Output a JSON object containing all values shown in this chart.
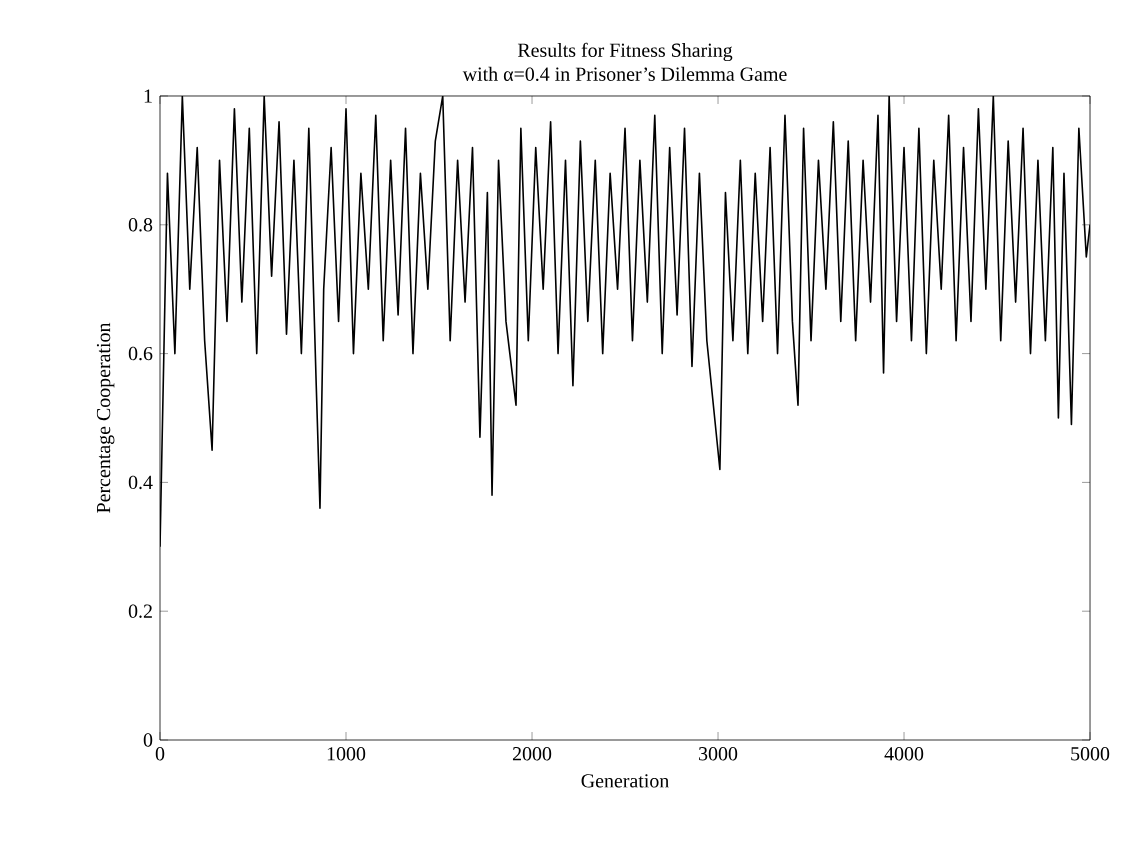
{
  "chart_data": {
    "type": "line",
    "title": "Results for Fitness Sharing",
    "subtitle": "with α=0.4 in Prisoner’s Dilemma Game",
    "xlabel": "Generation",
    "ylabel": "Percentage Cooperation",
    "xlim": [
      0,
      5000
    ],
    "ylim": [
      0,
      1
    ],
    "xticks": [
      0,
      1000,
      2000,
      3000,
      4000,
      5000
    ],
    "yticks": [
      0,
      0.2,
      0.4,
      0.6,
      0.8,
      1
    ],
    "grid": false,
    "marker": "none",
    "line_style": "solid",
    "series": [
      {
        "color": "#000000",
        "x": [
          0,
          40,
          80,
          120,
          160,
          200,
          240,
          280,
          320,
          360,
          400,
          440,
          480,
          520,
          560,
          600,
          640,
          680,
          720,
          760,
          800,
          840,
          860,
          880,
          920,
          960,
          1000,
          1040,
          1080,
          1120,
          1160,
          1200,
          1240,
          1280,
          1320,
          1360,
          1400,
          1440,
          1480,
          1520,
          1560,
          1600,
          1640,
          1680,
          1720,
          1760,
          1785,
          1820,
          1860,
          1914,
          1940,
          1980,
          2020,
          2060,
          2100,
          2140,
          2180,
          2220,
          2260,
          2300,
          2340,
          2380,
          2420,
          2460,
          2500,
          2540,
          2580,
          2620,
          2660,
          2700,
          2740,
          2780,
          2820,
          2860,
          2900,
          2940,
          3010,
          3040,
          3080,
          3120,
          3160,
          3200,
          3240,
          3280,
          3320,
          3360,
          3400,
          3430,
          3460,
          3500,
          3540,
          3580,
          3620,
          3660,
          3700,
          3740,
          3780,
          3820,
          3860,
          3890,
          3920,
          3960,
          4000,
          4040,
          4080,
          4120,
          4160,
          4200,
          4240,
          4280,
          4320,
          4360,
          4400,
          4440,
          4480,
          4520,
          4560,
          4600,
          4640,
          4680,
          4720,
          4760,
          4800,
          4830,
          4860,
          4900,
          4940,
          4980,
          5000
        ],
        "values": [
          0.3,
          0.88,
          0.6,
          1.0,
          0.7,
          0.92,
          0.62,
          0.45,
          0.9,
          0.65,
          0.98,
          0.68,
          0.95,
          0.6,
          1.0,
          0.72,
          0.96,
          0.63,
          0.9,
          0.6,
          0.95,
          0.55,
          0.36,
          0.7,
          0.92,
          0.65,
          0.98,
          0.6,
          0.88,
          0.7,
          0.97,
          0.62,
          0.9,
          0.66,
          0.95,
          0.6,
          0.88,
          0.7,
          0.93,
          1.0,
          0.62,
          0.9,
          0.68,
          0.92,
          0.47,
          0.85,
          0.38,
          0.9,
          0.65,
          0.52,
          0.95,
          0.62,
          0.92,
          0.7,
          0.96,
          0.6,
          0.9,
          0.55,
          0.93,
          0.65,
          0.9,
          0.6,
          0.88,
          0.7,
          0.95,
          0.62,
          0.9,
          0.68,
          0.97,
          0.6,
          0.92,
          0.66,
          0.95,
          0.58,
          0.88,
          0.62,
          0.42,
          0.85,
          0.62,
          0.9,
          0.6,
          0.88,
          0.65,
          0.92,
          0.6,
          0.97,
          0.65,
          0.52,
          0.95,
          0.62,
          0.9,
          0.7,
          0.96,
          0.65,
          0.93,
          0.62,
          0.9,
          0.68,
          0.97,
          0.57,
          1.0,
          0.65,
          0.92,
          0.62,
          0.95,
          0.6,
          0.9,
          0.7,
          0.97,
          0.62,
          0.92,
          0.65,
          0.98,
          0.7,
          1.0,
          0.62,
          0.93,
          0.68,
          0.95,
          0.6,
          0.9,
          0.62,
          0.92,
          0.5,
          0.88,
          0.49,
          0.95,
          0.75,
          0.8
        ]
      }
    ]
  }
}
